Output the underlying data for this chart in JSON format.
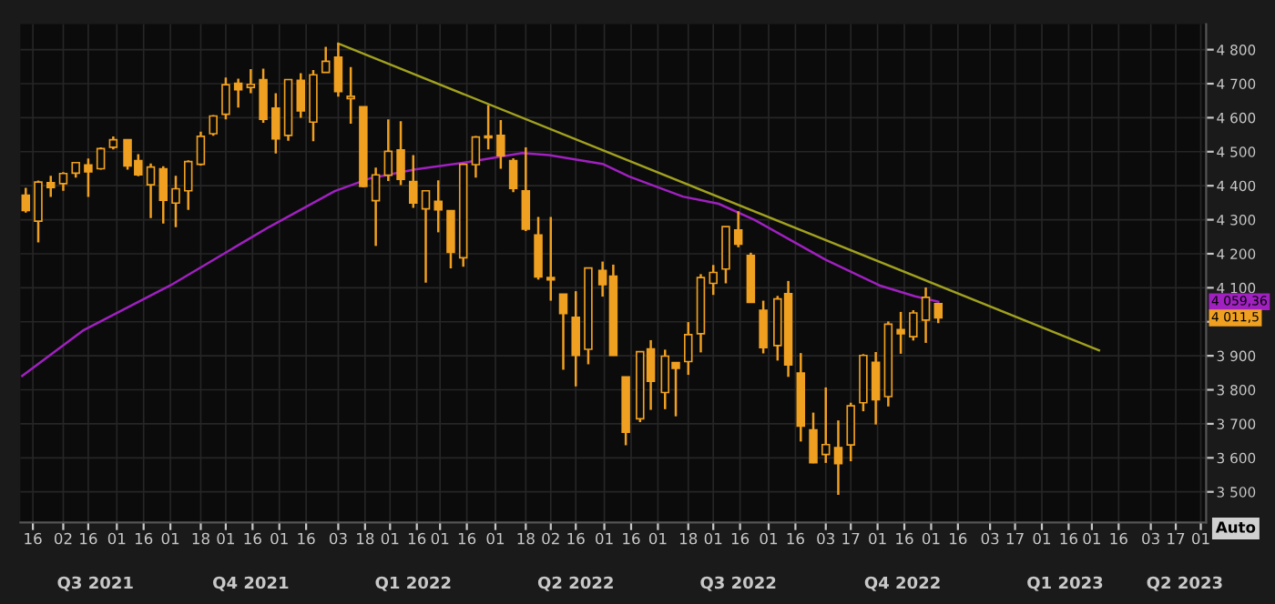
{
  "chart_data": {
    "type": "candlestick",
    "x": [
      "2021-07-12",
      "2021-07-19",
      "2021-07-26",
      "2021-08-02",
      "2021-08-09",
      "2021-08-16",
      "2021-08-23",
      "2021-08-30",
      "2021-09-07",
      "2021-09-13",
      "2021-09-20",
      "2021-09-27",
      "2021-10-04",
      "2021-10-11",
      "2021-10-18",
      "2021-10-25",
      "2021-11-01",
      "2021-11-08",
      "2021-11-15",
      "2021-11-22",
      "2021-11-29",
      "2021-12-06",
      "2021-12-13",
      "2021-12-20",
      "2021-12-27",
      "2022-01-03",
      "2022-01-10",
      "2022-01-17",
      "2022-01-24",
      "2022-01-31",
      "2022-02-07",
      "2022-02-14",
      "2022-02-21",
      "2022-02-28",
      "2022-03-07",
      "2022-03-14",
      "2022-03-21",
      "2022-03-28",
      "2022-04-04",
      "2022-04-11",
      "2022-04-18",
      "2022-04-25",
      "2022-05-02",
      "2022-05-09",
      "2022-05-16",
      "2022-05-23",
      "2022-05-31",
      "2022-06-06",
      "2022-06-13",
      "2022-06-21",
      "2022-06-27",
      "2022-07-05",
      "2022-07-11",
      "2022-07-18",
      "2022-07-25",
      "2022-08-01",
      "2022-08-08",
      "2022-08-15",
      "2022-08-22",
      "2022-08-29",
      "2022-09-06",
      "2022-09-12",
      "2022-09-19",
      "2022-09-26",
      "2022-10-03",
      "2022-10-10",
      "2022-10-17",
      "2022-10-24",
      "2022-10-31",
      "2022-11-07",
      "2022-11-14",
      "2022-11-21",
      "2022-11-28",
      "2022-12-05"
    ],
    "ohlc": [
      [
        4372,
        4394,
        4321,
        4327
      ],
      [
        4296,
        4415,
        4233,
        4411
      ],
      [
        4409,
        4429,
        4367,
        4395
      ],
      [
        4406,
        4440,
        4385,
        4436
      ],
      [
        4437,
        4468,
        4424,
        4468
      ],
      [
        4461,
        4480,
        4367,
        4441
      ],
      [
        4450,
        4513,
        4447,
        4509
      ],
      [
        4513,
        4545,
        4507,
        4535
      ],
      [
        4535,
        4536,
        4447,
        4458
      ],
      [
        4474,
        4493,
        4428,
        4432
      ],
      [
        4403,
        4465,
        4305,
        4455
      ],
      [
        4450,
        4457,
        4289,
        4357
      ],
      [
        4349,
        4429,
        4278,
        4391
      ],
      [
        4385,
        4475,
        4329,
        4471
      ],
      [
        4463,
        4559,
        4459,
        4545
      ],
      [
        4553,
        4608,
        4547,
        4605
      ],
      [
        4610,
        4718,
        4595,
        4697
      ],
      [
        4701,
        4715,
        4630,
        4682
      ],
      [
        4689,
        4743,
        4672,
        4698
      ],
      [
        4712,
        4744,
        4585,
        4595
      ],
      [
        4628,
        4672,
        4495,
        4538
      ],
      [
        4548,
        4713,
        4532,
        4712
      ],
      [
        4710,
        4731,
        4600,
        4620
      ],
      [
        4587,
        4740,
        4531,
        4726
      ],
      [
        4733,
        4808,
        4733,
        4766
      ],
      [
        4778,
        4819,
        4662,
        4677
      ],
      [
        4656,
        4749,
        4582,
        4663
      ],
      [
        4632,
        4632,
        4395,
        4398
      ],
      [
        4356,
        4453,
        4223,
        4432
      ],
      [
        4431,
        4595,
        4414,
        4501
      ],
      [
        4505,
        4590,
        4402,
        4419
      ],
      [
        4412,
        4490,
        4335,
        4349
      ],
      [
        4332,
        4385,
        4115,
        4385
      ],
      [
        4354,
        4416,
        4263,
        4329
      ],
      [
        4327,
        4328,
        4157,
        4204
      ],
      [
        4188,
        4465,
        4162,
        4463
      ],
      [
        4462,
        4546,
        4424,
        4543
      ],
      [
        4541,
        4637,
        4507,
        4546
      ],
      [
        4548,
        4593,
        4450,
        4488
      ],
      [
        4474,
        4481,
        4381,
        4392
      ],
      [
        4385,
        4513,
        4267,
        4272
      ],
      [
        4255,
        4308,
        4124,
        4132
      ],
      [
        4130,
        4308,
        4062,
        4123
      ],
      [
        4081,
        4082,
        3859,
        4024
      ],
      [
        4013,
        4090,
        3810,
        3901
      ],
      [
        3919,
        4159,
        3875,
        4158
      ],
      [
        4151,
        4177,
        4074,
        4109
      ],
      [
        4134,
        4168,
        3900,
        3901
      ],
      [
        3838,
        3838,
        3637,
        3675
      ],
      [
        3715,
        3913,
        3705,
        3912
      ],
      [
        3920,
        3946,
        3741,
        3825
      ],
      [
        3792,
        3918,
        3743,
        3899
      ],
      [
        3880,
        3880,
        3722,
        3863
      ],
      [
        3883,
        3999,
        3844,
        3962
      ],
      [
        3965,
        4140,
        3910,
        4130
      ],
      [
        4113,
        4167,
        4079,
        4145
      ],
      [
        4155,
        4280,
        4113,
        4280
      ],
      [
        4270,
        4325,
        4219,
        4228
      ],
      [
        4195,
        4203,
        4057,
        4057
      ],
      [
        4034,
        4062,
        3907,
        3924
      ],
      [
        3930,
        4076,
        3886,
        4067
      ],
      [
        4083,
        4120,
        3838,
        3873
      ],
      [
        3849,
        3908,
        3648,
        3693
      ],
      [
        3682,
        3733,
        3584,
        3586
      ],
      [
        3610,
        3807,
        3585,
        3639
      ],
      [
        3630,
        3710,
        3491,
        3583
      ],
      [
        3638,
        3762,
        3590,
        3753
      ],
      [
        3762,
        3905,
        3737,
        3901
      ],
      [
        3881,
        3911,
        3698,
        3771
      ],
      [
        3780,
        4001,
        3751,
        3993
      ],
      [
        3977,
        4029,
        3906,
        3965
      ],
      [
        3956,
        4034,
        3945,
        4026
      ],
      [
        4005,
        4101,
        3938,
        4072
      ],
      [
        4053,
        4053,
        3996,
        4011.5
      ]
    ],
    "color": "#f0a020",
    "series": [
      {
        "type": "line",
        "color": "#a020c0",
        "x": [
          "2021-07-10",
          "2021-08-13",
          "2021-10-01",
          "2021-11-25",
          "2022-01-01",
          "2022-01-21",
          "2022-02-15",
          "2022-03-17",
          "2022-04-16",
          "2022-05-01",
          "2022-05-31",
          "2022-06-15",
          "2022-07-15",
          "2022-08-04",
          "2022-08-24",
          "2022-09-13",
          "2022-10-03",
          "2022-11-02",
          "2022-11-22",
          "2022-12-05"
        ],
        "values": [
          3841,
          3974,
          4107,
          4278,
          4384,
          4422,
          4448,
          4470,
          4496,
          4490,
          4464,
          4427,
          4368,
          4347,
          4300,
          4241,
          4182,
          4107,
          4075,
          4059
        ]
      },
      {
        "type": "line",
        "color": "#a0a020",
        "x": [
          "2022-01-03",
          "2023-03-05"
        ],
        "values": [
          4818,
          3916
        ]
      }
    ],
    "xlim": [
      "2021-07-09",
      "2023-05-04"
    ],
    "xticks": [
      {
        "value": "2021-07-16",
        "label": "16"
      },
      {
        "value": "2021-08-02",
        "label": "02"
      },
      {
        "value": "2021-08-16",
        "label": "16"
      },
      {
        "value": "2021-09-01",
        "label": "01"
      },
      {
        "value": "2021-09-16",
        "label": "16"
      },
      {
        "value": "2021-10-01",
        "label": "01"
      },
      {
        "value": "2021-10-18",
        "label": "18"
      },
      {
        "value": "2021-11-01",
        "label": "01"
      },
      {
        "value": "2021-11-16",
        "label": "16"
      },
      {
        "value": "2021-12-01",
        "label": "01"
      },
      {
        "value": "2021-12-16",
        "label": "16"
      },
      {
        "value": "2022-01-03",
        "label": "03"
      },
      {
        "value": "2022-01-18",
        "label": "18"
      },
      {
        "value": "2022-02-01",
        "label": "01"
      },
      {
        "value": "2022-02-16",
        "label": "16"
      },
      {
        "value": "2022-03-01",
        "label": "01"
      },
      {
        "value": "2022-03-16",
        "label": "16"
      },
      {
        "value": "2022-04-01",
        "label": "01"
      },
      {
        "value": "2022-04-18",
        "label": "18"
      },
      {
        "value": "2022-05-02",
        "label": "02"
      },
      {
        "value": "2022-05-16",
        "label": "16"
      },
      {
        "value": "2022-06-01",
        "label": "01"
      },
      {
        "value": "2022-06-16",
        "label": "16"
      },
      {
        "value": "2022-07-01",
        "label": "01"
      },
      {
        "value": "2022-07-18",
        "label": "18"
      },
      {
        "value": "2022-08-01",
        "label": "01"
      },
      {
        "value": "2022-08-16",
        "label": "16"
      },
      {
        "value": "2022-09-01",
        "label": "01"
      },
      {
        "value": "2022-09-16",
        "label": "16"
      },
      {
        "value": "2022-10-03",
        "label": "03"
      },
      {
        "value": "2022-10-17",
        "label": "17"
      },
      {
        "value": "2022-11-01",
        "label": "01"
      },
      {
        "value": "2022-11-16",
        "label": "16"
      },
      {
        "value": "2022-12-01",
        "label": "01"
      },
      {
        "value": "2022-12-16",
        "label": "16"
      },
      {
        "value": "2023-01-03",
        "label": "03"
      },
      {
        "value": "2023-01-17",
        "label": "17"
      },
      {
        "value": "2023-02-01",
        "label": "01"
      },
      {
        "value": "2023-02-16",
        "label": "16"
      },
      {
        "value": "2023-03-01",
        "label": "01"
      },
      {
        "value": "2023-03-16",
        "label": "16"
      },
      {
        "value": "2023-04-03",
        "label": "03"
      },
      {
        "value": "2023-04-17",
        "label": "17"
      },
      {
        "value": "2023-05-01",
        "label": "01"
      }
    ],
    "x2ticks": [
      {
        "value": "2021-08-20",
        "label": "Q3 2021"
      },
      {
        "value": "2021-11-15",
        "label": "Q4 2021"
      },
      {
        "value": "2022-02-14",
        "label": "Q1 2022"
      },
      {
        "value": "2022-05-16",
        "label": "Q2 2022"
      },
      {
        "value": "2022-08-15",
        "label": "Q3 2022"
      },
      {
        "value": "2022-11-15",
        "label": "Q4 2022"
      },
      {
        "value": "2023-02-14",
        "label": "Q1 2023"
      },
      {
        "value": "2023-04-22",
        "label": "Q2 2023"
      }
    ],
    "ylim": [
      3410,
      4875
    ],
    "yticks": [
      {
        "value": 3500,
        "label": "3 500"
      },
      {
        "value": 3600,
        "label": "3 600"
      },
      {
        "value": 3700,
        "label": "3 700"
      },
      {
        "value": 3800,
        "label": "3 800"
      },
      {
        "value": 3900,
        "label": "3 900"
      },
      {
        "value": 4000,
        "label": null
      },
      {
        "value": 4100,
        "label": "4 100"
      },
      {
        "value": 4200,
        "label": "4 200"
      },
      {
        "value": 4300,
        "label": "4 300"
      },
      {
        "value": 4400,
        "label": "4 400"
      },
      {
        "value": 4500,
        "label": "4 500"
      },
      {
        "value": 4600,
        "label": "4 600"
      },
      {
        "value": 4700,
        "label": "4 700"
      },
      {
        "value": 4800,
        "label": "4 800"
      }
    ],
    "grid": true,
    "x2lim": [
      "2021-07-09",
      "2023-05-04"
    ],
    "annotations": [
      "4 059,36",
      "4 011,5",
      "Auto"
    ]
  }
}
